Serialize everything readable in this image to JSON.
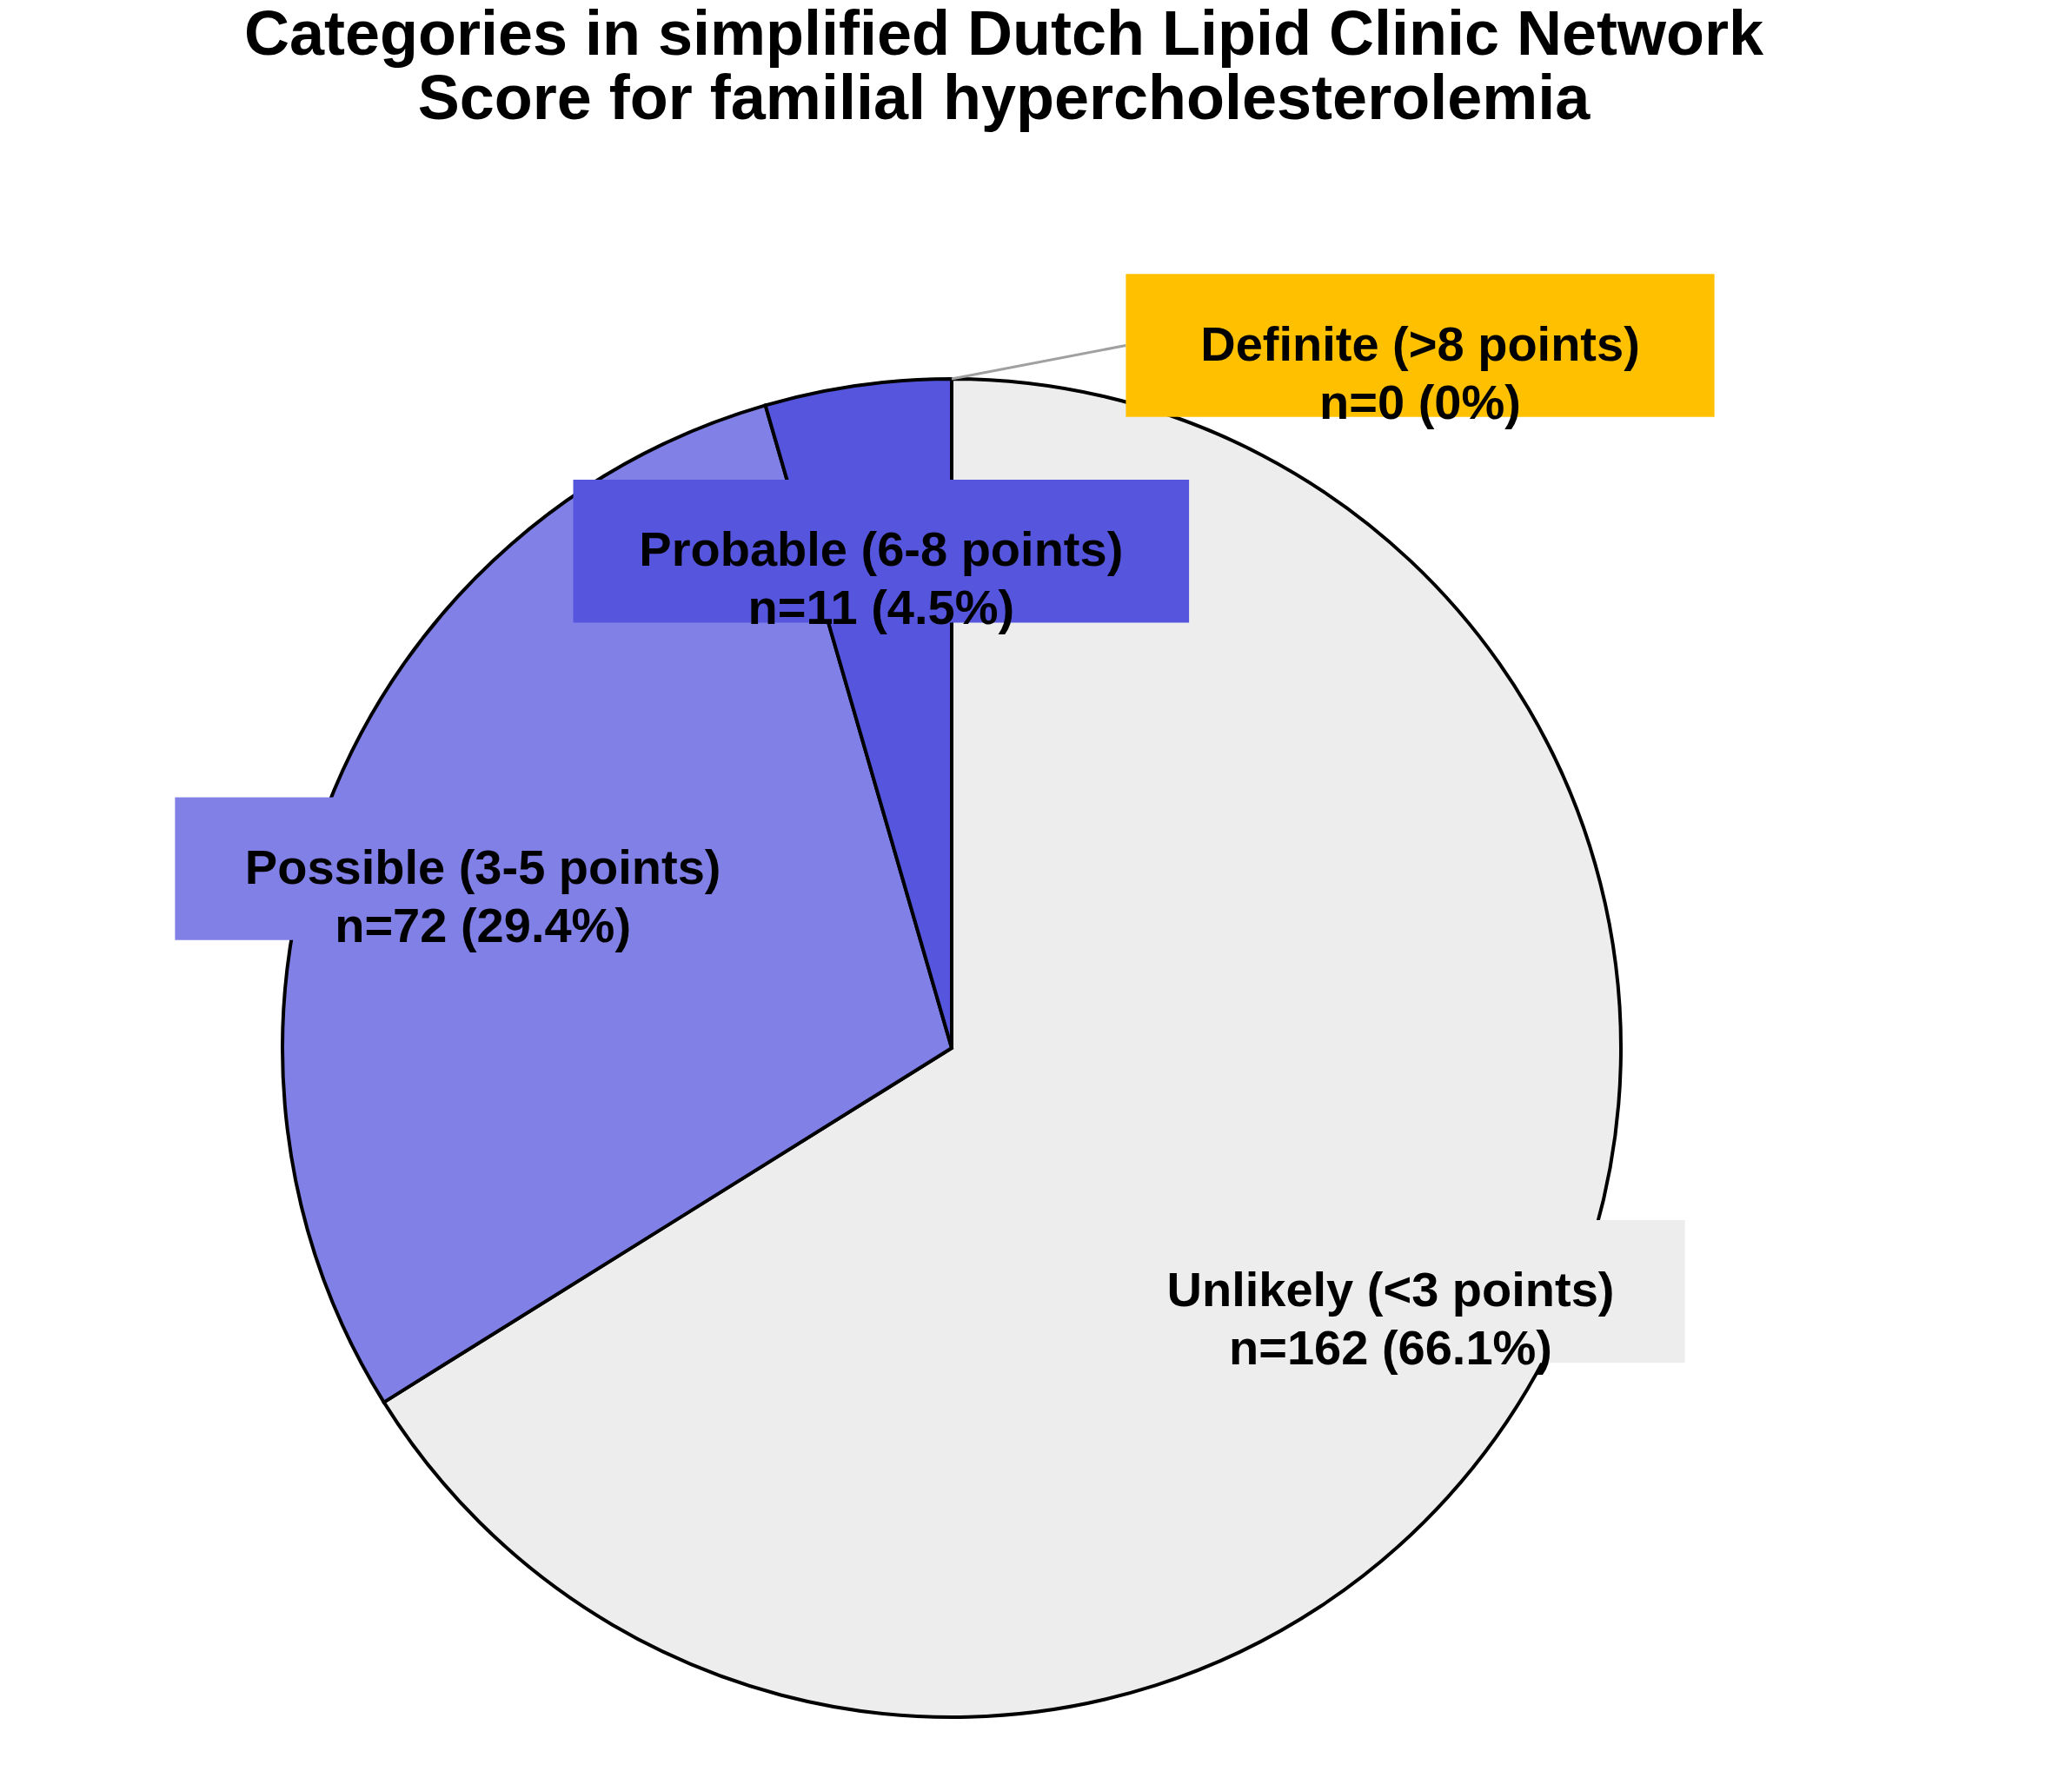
{
  "chart_data": {
    "type": "pie",
    "title": [
      "Categories in simplified Dutch Lipid Clinic Network",
      "Score for familial hypercholesterolemia"
    ],
    "categories": [
      "Unlikely (<3 points)",
      "Possible (3-5 points)",
      "Probable (6-8 points)",
      "Definite (>8 points)"
    ],
    "values": [
      162,
      72,
      11,
      0
    ],
    "colors": [
      "#ededed",
      "#8080e6",
      "#5555dd",
      "#ffc000"
    ],
    "value_labels": [
      "n=162 (66.1%)",
      "n=72 (29.4%)",
      "n=11 (4.5%)",
      "n=0 (0%)"
    ]
  }
}
